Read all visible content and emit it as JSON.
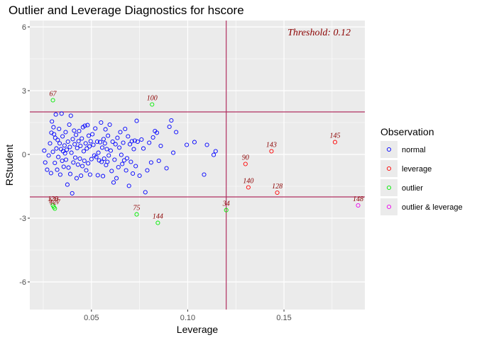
{
  "chart_data": {
    "type": "scatter",
    "title": "Outlier and Leverage Diagnostics for hscore",
    "xlabel": "Leverage",
    "ylabel": "RStudent",
    "xlim": [
      0.018,
      0.192
    ],
    "ylim": [
      -7.3,
      6.3
    ],
    "x_ticks": [
      0.05,
      0.1,
      0.15
    ],
    "x_tick_labels": [
      "0.05",
      "0.10",
      "0.15"
    ],
    "y_ticks": [
      -6,
      -3,
      0,
      3,
      6
    ],
    "y_tick_labels": [
      "-6",
      "-3",
      "0",
      "3",
      "6"
    ],
    "grid": true,
    "threshold_label": "Threshold: 0.12",
    "threshold": 0.12,
    "h_lines": [
      2,
      -2
    ],
    "legend_title": "Observation",
    "legend_position": "right",
    "groups": [
      {
        "name": "normal",
        "color": "#0000ff"
      },
      {
        "name": "leverage",
        "color": "#ff0000"
      },
      {
        "name": "outlier",
        "color": "#00ee00"
      },
      {
        "name": "outlier & leverage",
        "color": "#ee00ee"
      }
    ],
    "colors": {
      "panel": "#ebebeb",
      "grid": "#ffffff",
      "ref_line": "#b03060",
      "label": "#8b0000"
    },
    "points": [
      {
        "x": 0.0255,
        "y": 0.18,
        "group": "normal"
      },
      {
        "x": 0.026,
        "y": -0.38,
        "group": "normal"
      },
      {
        "x": 0.027,
        "y": -0.72,
        "group": "normal"
      },
      {
        "x": 0.0278,
        "y": -0.05,
        "group": "normal"
      },
      {
        "x": 0.0285,
        "y": 0.52,
        "group": "normal"
      },
      {
        "x": 0.029,
        "y": -0.88,
        "group": "normal"
      },
      {
        "x": 0.0292,
        "y": 1.02,
        "group": "normal"
      },
      {
        "x": 0.0295,
        "y": 1.55,
        "group": "normal"
      },
      {
        "x": 0.03,
        "y": 0.12,
        "group": "normal"
      },
      {
        "x": 0.0303,
        "y": 1.28,
        "group": "normal"
      },
      {
        "x": 0.0306,
        "y": 0.95,
        "group": "normal"
      },
      {
        "x": 0.031,
        "y": -0.4,
        "group": "normal"
      },
      {
        "x": 0.0312,
        "y": 0.78,
        "group": "normal"
      },
      {
        "x": 0.0315,
        "y": 1.88,
        "group": "normal"
      },
      {
        "x": 0.0318,
        "y": 0.28,
        "group": "normal"
      },
      {
        "x": 0.0322,
        "y": -0.72,
        "group": "normal"
      },
      {
        "x": 0.0325,
        "y": 0.68,
        "group": "normal"
      },
      {
        "x": 0.0328,
        "y": -0.12,
        "group": "normal"
      },
      {
        "x": 0.0332,
        "y": 1.2,
        "group": "normal"
      },
      {
        "x": 0.0335,
        "y": 0.52,
        "group": "normal"
      },
      {
        "x": 0.0338,
        "y": -0.95,
        "group": "normal"
      },
      {
        "x": 0.0342,
        "y": 0.25,
        "group": "normal"
      },
      {
        "x": 0.0345,
        "y": 1.92,
        "group": "normal"
      },
      {
        "x": 0.0348,
        "y": -0.3,
        "group": "normal"
      },
      {
        "x": 0.035,
        "y": 0.85,
        "group": "normal"
      },
      {
        "x": 0.0353,
        "y": 0.15,
        "group": "normal"
      },
      {
        "x": 0.0356,
        "y": -0.58,
        "group": "normal"
      },
      {
        "x": 0.036,
        "y": 0.42,
        "group": "normal"
      },
      {
        "x": 0.0363,
        "y": 0.05,
        "group": "normal"
      },
      {
        "x": 0.0366,
        "y": 1.05,
        "group": "normal"
      },
      {
        "x": 0.0368,
        "y": -0.25,
        "group": "normal"
      },
      {
        "x": 0.0372,
        "y": 0.22,
        "group": "normal"
      },
      {
        "x": 0.0375,
        "y": -1.42,
        "group": "normal"
      },
      {
        "x": 0.0378,
        "y": 0.6,
        "group": "normal"
      },
      {
        "x": 0.0381,
        "y": -0.62,
        "group": "normal"
      },
      {
        "x": 0.0385,
        "y": 1.4,
        "group": "normal"
      },
      {
        "x": 0.0388,
        "y": 0.35,
        "group": "normal"
      },
      {
        "x": 0.039,
        "y": -0.92,
        "group": "normal"
      },
      {
        "x": 0.0393,
        "y": 1.82,
        "group": "normal"
      },
      {
        "x": 0.0396,
        "y": 0.08,
        "group": "normal"
      },
      {
        "x": 0.04,
        "y": -1.83,
        "group": "normal"
      },
      {
        "x": 0.0403,
        "y": 0.72,
        "group": "normal"
      },
      {
        "x": 0.0406,
        "y": -0.38,
        "group": "normal"
      },
      {
        "x": 0.041,
        "y": 1.12,
        "group": "normal"
      },
      {
        "x": 0.0413,
        "y": 0.48,
        "group": "normal"
      },
      {
        "x": 0.0416,
        "y": -0.15,
        "group": "normal"
      },
      {
        "x": 0.042,
        "y": 0.92,
        "group": "normal"
      },
      {
        "x": 0.0423,
        "y": -1.12,
        "group": "normal"
      },
      {
        "x": 0.0426,
        "y": 0.3,
        "group": "normal"
      },
      {
        "x": 0.043,
        "y": -0.48,
        "group": "normal"
      },
      {
        "x": 0.0433,
        "y": 0.62,
        "group": "normal"
      },
      {
        "x": 0.0436,
        "y": 1.1,
        "group": "normal"
      },
      {
        "x": 0.044,
        "y": -0.2,
        "group": "normal"
      },
      {
        "x": 0.0443,
        "y": 0.4,
        "group": "normal"
      },
      {
        "x": 0.0446,
        "y": -1.0,
        "group": "normal"
      },
      {
        "x": 0.045,
        "y": 0.75,
        "group": "normal"
      },
      {
        "x": 0.0453,
        "y": -0.55,
        "group": "normal"
      },
      {
        "x": 0.0456,
        "y": 1.28,
        "group": "normal"
      },
      {
        "x": 0.046,
        "y": 0.15,
        "group": "normal"
      },
      {
        "x": 0.0463,
        "y": -0.3,
        "group": "normal"
      },
      {
        "x": 0.0466,
        "y": 1.35,
        "group": "normal"
      },
      {
        "x": 0.047,
        "y": 0.52,
        "group": "normal"
      },
      {
        "x": 0.0473,
        "y": -0.75,
        "group": "normal"
      },
      {
        "x": 0.0476,
        "y": 0.28,
        "group": "normal"
      },
      {
        "x": 0.048,
        "y": 1.38,
        "group": "normal"
      },
      {
        "x": 0.0483,
        "y": -0.42,
        "group": "normal"
      },
      {
        "x": 0.0486,
        "y": 0.88,
        "group": "normal"
      },
      {
        "x": 0.049,
        "y": 0.38,
        "group": "normal"
      },
      {
        "x": 0.0493,
        "y": -0.95,
        "group": "normal"
      },
      {
        "x": 0.0496,
        "y": 0.62,
        "group": "normal"
      },
      {
        "x": 0.05,
        "y": -0.22,
        "group": "normal"
      },
      {
        "x": 0.0505,
        "y": 0.95,
        "group": "normal"
      },
      {
        "x": 0.051,
        "y": 0.45,
        "group": "normal"
      },
      {
        "x": 0.0515,
        "y": -0.05,
        "group": "normal"
      },
      {
        "x": 0.052,
        "y": 1.22,
        "group": "normal"
      },
      {
        "x": 0.0525,
        "y": -0.12,
        "group": "normal"
      },
      {
        "x": 0.053,
        "y": 0.6,
        "group": "normal"
      },
      {
        "x": 0.0533,
        "y": -0.98,
        "group": "normal"
      },
      {
        "x": 0.0536,
        "y": 0.08,
        "group": "normal"
      },
      {
        "x": 0.054,
        "y": -0.28,
        "group": "normal"
      },
      {
        "x": 0.0545,
        "y": 0.58,
        "group": "normal"
      },
      {
        "x": 0.055,
        "y": 1.5,
        "group": "normal"
      },
      {
        "x": 0.0553,
        "y": -0.35,
        "group": "normal"
      },
      {
        "x": 0.0556,
        "y": 0.32,
        "group": "normal"
      },
      {
        "x": 0.056,
        "y": -1.02,
        "group": "normal"
      },
      {
        "x": 0.0563,
        "y": 0.72,
        "group": "normal"
      },
      {
        "x": 0.0566,
        "y": -0.2,
        "group": "normal"
      },
      {
        "x": 0.057,
        "y": 0.52,
        "group": "normal"
      },
      {
        "x": 0.0573,
        "y": 1.18,
        "group": "normal"
      },
      {
        "x": 0.0576,
        "y": -0.5,
        "group": "normal"
      },
      {
        "x": 0.058,
        "y": 0.25,
        "group": "normal"
      },
      {
        "x": 0.0583,
        "y": -0.35,
        "group": "normal"
      },
      {
        "x": 0.0586,
        "y": 0.88,
        "group": "normal"
      },
      {
        "x": 0.059,
        "y": -0.05,
        "group": "normal"
      },
      {
        "x": 0.0595,
        "y": 1.4,
        "group": "normal"
      },
      {
        "x": 0.06,
        "y": 0.18,
        "group": "normal"
      },
      {
        "x": 0.0605,
        "y": -0.78,
        "group": "normal"
      },
      {
        "x": 0.061,
        "y": 0.6,
        "group": "normal"
      },
      {
        "x": 0.0615,
        "y": -1.32,
        "group": "normal"
      },
      {
        "x": 0.062,
        "y": -0.25,
        "group": "normal"
      },
      {
        "x": 0.0625,
        "y": 0.48,
        "group": "normal"
      },
      {
        "x": 0.063,
        "y": -1.12,
        "group": "normal"
      },
      {
        "x": 0.0635,
        "y": 0.78,
        "group": "normal"
      },
      {
        "x": 0.064,
        "y": -0.6,
        "group": "normal"
      },
      {
        "x": 0.0645,
        "y": 0.32,
        "group": "normal"
      },
      {
        "x": 0.065,
        "y": 1.05,
        "group": "normal"
      },
      {
        "x": 0.0655,
        "y": -0.02,
        "group": "normal"
      },
      {
        "x": 0.066,
        "y": -0.45,
        "group": "normal"
      },
      {
        "x": 0.0665,
        "y": 0.55,
        "group": "normal"
      },
      {
        "x": 0.067,
        "y": -0.28,
        "group": "normal"
      },
      {
        "x": 0.0675,
        "y": 1.2,
        "group": "normal"
      },
      {
        "x": 0.068,
        "y": -0.75,
        "group": "normal"
      },
      {
        "x": 0.0685,
        "y": -0.18,
        "group": "normal"
      },
      {
        "x": 0.069,
        "y": 0.85,
        "group": "normal"
      },
      {
        "x": 0.0695,
        "y": -1.48,
        "group": "normal"
      },
      {
        "x": 0.07,
        "y": 0.48,
        "group": "normal"
      },
      {
        "x": 0.0705,
        "y": -0.35,
        "group": "normal"
      },
      {
        "x": 0.071,
        "y": 0.62,
        "group": "normal"
      },
      {
        "x": 0.0715,
        "y": -0.9,
        "group": "normal"
      },
      {
        "x": 0.072,
        "y": 0.25,
        "group": "normal"
      },
      {
        "x": 0.0725,
        "y": 0.65,
        "group": "normal"
      },
      {
        "x": 0.073,
        "y": -0.55,
        "group": "normal"
      },
      {
        "x": 0.0735,
        "y": 1.58,
        "group": "normal"
      },
      {
        "x": 0.074,
        "y": 0.6,
        "group": "normal"
      },
      {
        "x": 0.075,
        "y": -1.0,
        "group": "normal"
      },
      {
        "x": 0.076,
        "y": 0.7,
        "group": "normal"
      },
      {
        "x": 0.077,
        "y": 0.28,
        "group": "normal"
      },
      {
        "x": 0.078,
        "y": -1.78,
        "group": "normal"
      },
      {
        "x": 0.079,
        "y": -0.75,
        "group": "normal"
      },
      {
        "x": 0.08,
        "y": 0.55,
        "group": "normal"
      },
      {
        "x": 0.081,
        "y": -0.38,
        "group": "normal"
      },
      {
        "x": 0.082,
        "y": 0.8,
        "group": "normal"
      },
      {
        "x": 0.083,
        "y": 1.1,
        "group": "normal"
      },
      {
        "x": 0.084,
        "y": 1.02,
        "group": "normal"
      },
      {
        "x": 0.085,
        "y": -0.3,
        "group": "normal"
      },
      {
        "x": 0.086,
        "y": 0.4,
        "group": "normal"
      },
      {
        "x": 0.089,
        "y": -0.65,
        "group": "normal"
      },
      {
        "x": 0.0905,
        "y": 1.3,
        "group": "normal"
      },
      {
        "x": 0.0915,
        "y": 1.6,
        "group": "normal"
      },
      {
        "x": 0.0925,
        "y": 0.08,
        "group": "normal"
      },
      {
        "x": 0.094,
        "y": 1.05,
        "group": "normal"
      },
      {
        "x": 0.0995,
        "y": 0.45,
        "group": "normal"
      },
      {
        "x": 0.1035,
        "y": 0.58,
        "group": "normal"
      },
      {
        "x": 0.1085,
        "y": -0.95,
        "group": "normal"
      },
      {
        "x": 0.11,
        "y": 0.45,
        "group": "normal"
      },
      {
        "x": 0.1135,
        "y": -0.02,
        "group": "normal"
      },
      {
        "x": 0.1145,
        "y": 0.15,
        "group": "normal"
      },
      {
        "x": 0.13,
        "y": -0.45,
        "group": "leverage",
        "label": "90"
      },
      {
        "x": 0.1315,
        "y": -1.55,
        "group": "leverage",
        "label": "140"
      },
      {
        "x": 0.1435,
        "y": 0.15,
        "group": "leverage",
        "label": "143"
      },
      {
        "x": 0.1465,
        "y": -1.8,
        "group": "leverage",
        "label": "128"
      },
      {
        "x": 0.1765,
        "y": 0.58,
        "group": "leverage",
        "label": "145"
      },
      {
        "x": 0.03,
        "y": 2.55,
        "group": "outlier",
        "label": "67"
      },
      {
        "x": 0.03,
        "y": -2.4,
        "group": "outlier",
        "label": "129"
      },
      {
        "x": 0.0305,
        "y": -2.48,
        "group": "outlier",
        "label": "121"
      },
      {
        "x": 0.031,
        "y": -2.55,
        "group": "outlier",
        "label": "127"
      },
      {
        "x": 0.0735,
        "y": -2.82,
        "group": "outlier",
        "label": "75"
      },
      {
        "x": 0.0815,
        "y": 2.35,
        "group": "outlier",
        "label": "100"
      },
      {
        "x": 0.0845,
        "y": -3.22,
        "group": "outlier",
        "label": "144"
      },
      {
        "x": 0.12,
        "y": -2.62,
        "group": "outlier",
        "label": "34"
      },
      {
        "x": 0.1885,
        "y": -2.4,
        "group": "outlier & leverage",
        "label": "148"
      }
    ]
  }
}
